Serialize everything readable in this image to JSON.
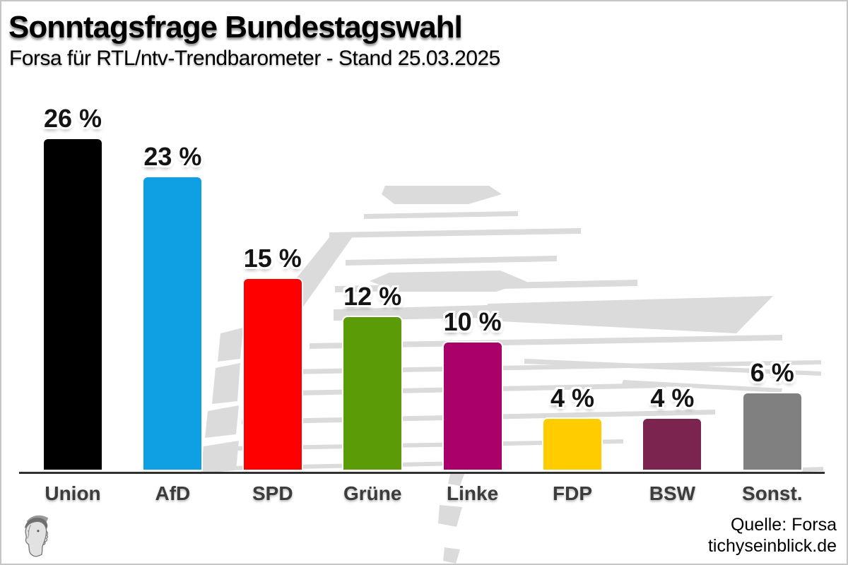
{
  "header": {
    "title": "Sonntagsfrage Bundestagswahl",
    "subtitle": "Forsa für RTL/ntv-Trendbarometer - Stand 25.03.2025"
  },
  "chart_data": {
    "type": "bar",
    "title": "Sonntagsfrage Bundestagswahl",
    "subtitle": "Forsa für RTL/ntv-Trendbarometer - Stand 25.03.2025",
    "categories": [
      "Union",
      "AfD",
      "SPD",
      "Grüne",
      "Linke",
      "FDP",
      "BSW",
      "Sonst."
    ],
    "values": [
      26,
      23,
      15,
      12,
      10,
      4,
      4,
      6
    ],
    "value_labels": [
      "26 %",
      "23 %",
      "15 %",
      "12 %",
      "10 %",
      "4 %",
      "4 %",
      "6 %"
    ],
    "colors": [
      "#000000",
      "#0f9fe3",
      "#ff0000",
      "#5b9b08",
      "#aa0069",
      "#ffcc00",
      "#7b2450",
      "#808080"
    ],
    "xlabel": "",
    "ylabel": "",
    "ylim": [
      0,
      27.5
    ],
    "grid": false,
    "legend": "none",
    "axis_color": "#303030",
    "watermark": "reichstag-dome",
    "watermark_color": "#dbdbdb"
  },
  "footer": {
    "source": "Quelle: Forsa",
    "website": "tichyseinblick.de",
    "logo_icon": "hermes-head-logo"
  }
}
